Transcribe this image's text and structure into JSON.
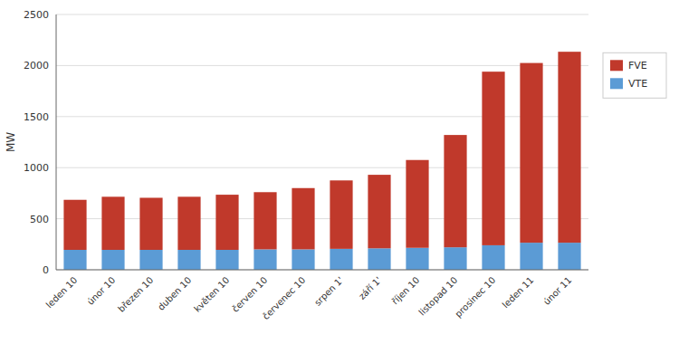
{
  "chart_data": {
    "type": "bar",
    "stacked": true,
    "categories": [
      "leden 10",
      "únor 10",
      "březen 10",
      "duben 10",
      "květen 10",
      "červen 10",
      "červenec 10",
      "srpen 1'",
      "září 1'",
      "říjen 10",
      "listopad 10",
      "prosinec 10",
      "leden 11",
      "únor 11"
    ],
    "series": [
      {
        "name": "VTE",
        "color": "#5B9BD5",
        "values": [
          195,
          195,
          195,
          195,
          195,
          200,
          200,
          205,
          210,
          215,
          220,
          240,
          265,
          265
        ]
      },
      {
        "name": "FVE",
        "color": "#C0392B",
        "values": [
          490,
          520,
          510,
          520,
          540,
          560,
          600,
          670,
          720,
          860,
          1100,
          1700,
          1760,
          1870
        ]
      }
    ],
    "ylabel": "MW",
    "ylim": [
      0,
      2500
    ],
    "yticks": [
      0,
      500,
      1000,
      1500,
      2000,
      2500
    ],
    "grid": true,
    "legend": "right"
  }
}
